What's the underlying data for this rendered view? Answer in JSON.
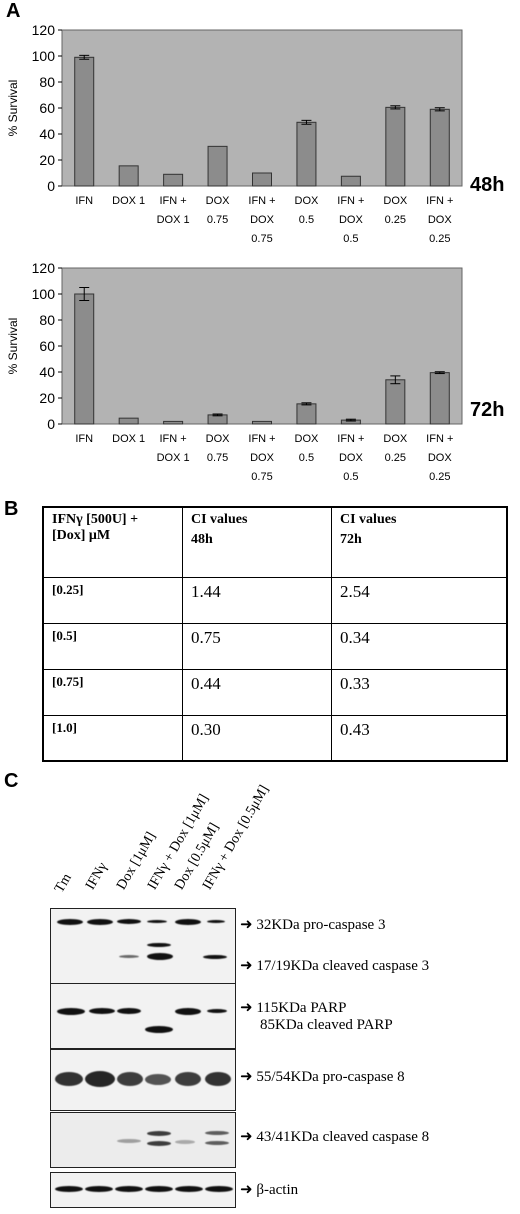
{
  "panels": {
    "a": "A",
    "b": "B",
    "c": "C"
  },
  "chart_data": [
    {
      "type": "bar",
      "ylabel": "% Survival",
      "ylim": [
        0,
        120
      ],
      "yticks": [
        0,
        20,
        40,
        60,
        80,
        100,
        120
      ],
      "categories": [
        [
          "IFN"
        ],
        [
          "DOX 1"
        ],
        [
          "IFN +",
          "DOX 1"
        ],
        [
          "DOX",
          "0.75"
        ],
        [
          "IFN +",
          "DOX",
          "0.75"
        ],
        [
          "DOX",
          "0.5"
        ],
        [
          "IFN +",
          "DOX",
          "0.5"
        ],
        [
          "DOX",
          "0.25"
        ],
        [
          "IFN +",
          "DOX",
          "0.25"
        ]
      ],
      "values": [
        99,
        15.5,
        9,
        30.5,
        10,
        49,
        7.5,
        60.5,
        59
      ],
      "errors": [
        1.5,
        0,
        0,
        0,
        0,
        1.5,
        0,
        1.2,
        1.2
      ],
      "time_label": "48h",
      "grid": false,
      "colors": {
        "plot_bg": "#b3b3b3",
        "bar": "#8c8c8c"
      }
    },
    {
      "type": "bar",
      "ylabel": "% Survival",
      "ylim": [
        0,
        120
      ],
      "yticks": [
        0,
        20,
        40,
        60,
        80,
        100,
        120
      ],
      "categories": [
        [
          "IFN"
        ],
        [
          "DOX 1"
        ],
        [
          "IFN +",
          "DOX 1"
        ],
        [
          "DOX",
          "0.75"
        ],
        [
          "IFN +",
          "DOX",
          "0.75"
        ],
        [
          "DOX",
          "0.5"
        ],
        [
          "IFN +",
          "DOX",
          "0.5"
        ],
        [
          "DOX",
          "0.25"
        ],
        [
          "IFN +",
          "DOX",
          "0.25"
        ]
      ],
      "values": [
        100,
        4.5,
        2,
        7,
        2,
        15.5,
        3,
        34,
        39.5
      ],
      "errors": [
        5,
        0,
        0,
        0.7,
        0,
        0.8,
        0.7,
        3,
        0.7
      ],
      "time_label": "72h",
      "grid": false,
      "colors": {
        "plot_bg": "#b3b3b3",
        "bar": "#8c8c8c"
      }
    }
  ],
  "table": {
    "header": {
      "col1": [
        "IFNγ [500U]  +",
        "[Dox] μM"
      ],
      "col2": [
        "CI values",
        "48h"
      ],
      "col3": [
        "CI values",
        "72h"
      ]
    },
    "rows": [
      {
        "conc": "[0.25]",
        "h48": "1.44",
        "h72": "2.54"
      },
      {
        "conc": "[0.5]",
        "h48": "0.75",
        "h72": "0.34"
      },
      {
        "conc": "[0.75]",
        "h48": "0.44",
        "h72": "0.33"
      },
      {
        "conc": "[1.0]",
        "h48": "0.30",
        "h72": "0.43"
      }
    ]
  },
  "western": {
    "lanes": [
      "Tm",
      "IFNγ",
      "Dox [1μM]",
      "IFNγ + Dox [1μM]",
      "Dox [0.5μM]",
      "IFNγ + Dox [0.5μM]"
    ],
    "arrow": "➜",
    "labels": {
      "pro_casp3": "32KDa pro-caspase 3",
      "cleaved_casp3": "17/19KDa cleaved caspase 3",
      "parp": "115KDa PARP",
      "cleaved_parp": "85KDa cleaved PARP",
      "pro_casp8": "55/54KDa pro-caspase 8",
      "cleaved_casp8": "43/41KDa cleaved caspase 8",
      "actin": "β-actin"
    }
  }
}
